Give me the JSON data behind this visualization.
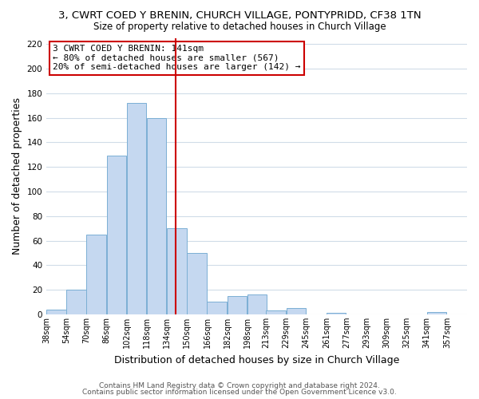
{
  "title": "3, CWRT COED Y BRENIN, CHURCH VILLAGE, PONTYPRIDD, CF38 1TN",
  "subtitle": "Size of property relative to detached houses in Church Village",
  "xlabel": "Distribution of detached houses by size in Church Village",
  "ylabel": "Number of detached properties",
  "bar_color": "#c5d8f0",
  "bar_edge_color": "#7bafd4",
  "bins_left": [
    38,
    54,
    70,
    86,
    102,
    118,
    134,
    150,
    166,
    182,
    198,
    213,
    229,
    245,
    261,
    277,
    293,
    309,
    325,
    341
  ],
  "bin_width": 16,
  "bar_heights": [
    4,
    20,
    65,
    129,
    172,
    160,
    70,
    50,
    10,
    15,
    16,
    3,
    5,
    0,
    1,
    0,
    0,
    0,
    0,
    2
  ],
  "xtick_labels": [
    "38sqm",
    "54sqm",
    "70sqm",
    "86sqm",
    "102sqm",
    "118sqm",
    "134sqm",
    "150sqm",
    "166sqm",
    "182sqm",
    "198sqm",
    "213sqm",
    "229sqm",
    "245sqm",
    "261sqm",
    "277sqm",
    "293sqm",
    "309sqm",
    "325sqm",
    "341sqm",
    "357sqm"
  ],
  "xtick_positions": [
    38,
    54,
    70,
    86,
    102,
    118,
    134,
    150,
    166,
    182,
    198,
    213,
    229,
    245,
    261,
    277,
    293,
    309,
    325,
    341,
    357
  ],
  "xlim_left": 38,
  "xlim_right": 373,
  "ylim": [
    0,
    225
  ],
  "yticks": [
    0,
    20,
    40,
    60,
    80,
    100,
    120,
    140,
    160,
    180,
    200,
    220
  ],
  "vline_x": 141,
  "vline_color": "#cc0000",
  "annotation_title": "3 CWRT COED Y BRENIN: 141sqm",
  "annotation_line1": "← 80% of detached houses are smaller (567)",
  "annotation_line2": "20% of semi-detached houses are larger (142) →",
  "footer1": "Contains HM Land Registry data © Crown copyright and database right 2024.",
  "footer2": "Contains public sector information licensed under the Open Government Licence v3.0.",
  "background_color": "#ffffff",
  "grid_color": "#d0dce8",
  "title_fontsize": 9.5,
  "subtitle_fontsize": 8.5,
  "xlabel_fontsize": 9,
  "ylabel_fontsize": 9,
  "footer_fontsize": 6.5,
  "annot_fontsize": 8
}
